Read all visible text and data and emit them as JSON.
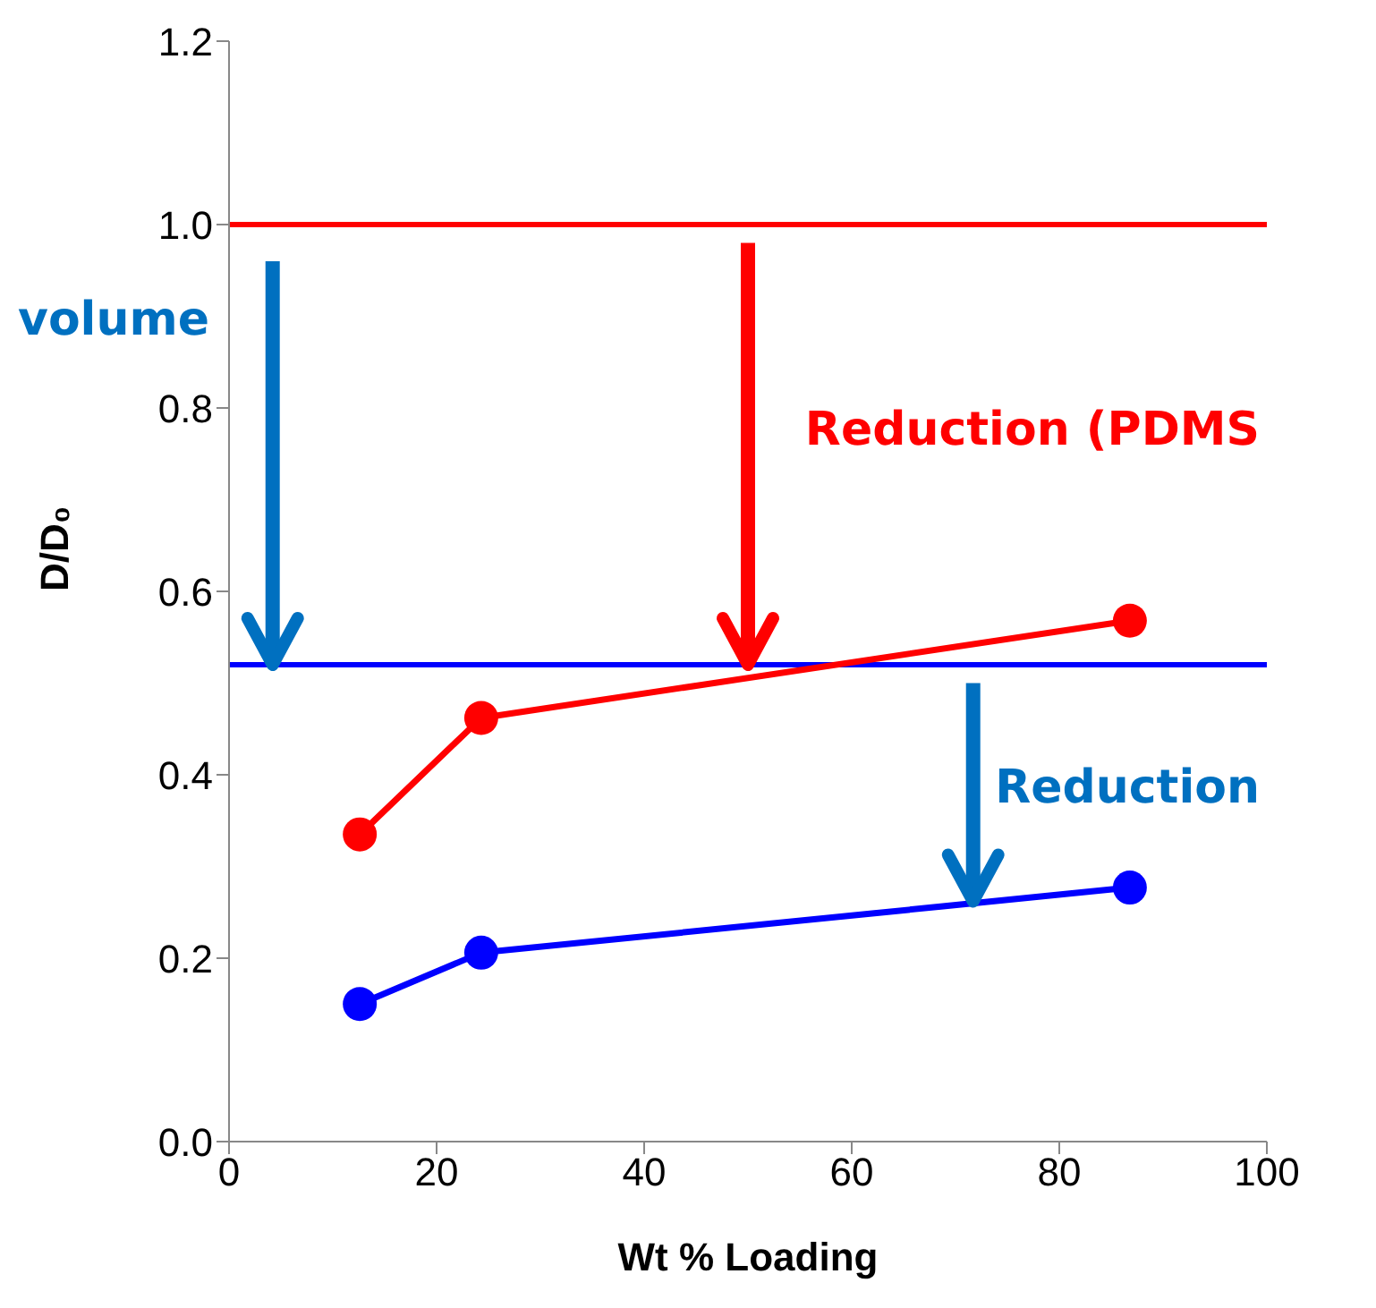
{
  "chart_data": {
    "type": "line",
    "xlabel": "Wt % Loading",
    "ylabel": "D/D₀",
    "x": [
      12.6,
      24.3,
      86.8
    ],
    "series": [
      {
        "color": "#ff0000",
        "values": [
          0.335,
          0.462,
          0.568
        ]
      },
      {
        "color": "#0000ff",
        "values": [
          0.15,
          0.206,
          0.277
        ]
      }
    ],
    "xlim": [
      0,
      100
    ],
    "xticks": [
      0,
      20,
      40,
      60,
      80,
      100
    ],
    "ylim": [
      0,
      1.2
    ],
    "yticks": [
      {
        "value": 0,
        "label": "0.0"
      },
      {
        "value": 0.2,
        "label": "0.2"
      },
      {
        "value": 0.4,
        "label": "0.4"
      },
      {
        "value": 0.6,
        "label": "0.6"
      },
      {
        "value": 0.8,
        "label": "0.8"
      },
      {
        "value": 1,
        "label": "1.0"
      },
      {
        "value": 1.2,
        "label": "1.2"
      }
    ],
    "marker": "circle",
    "ref_lines": [
      {
        "axis": "y",
        "value": 1,
        "color": "#ff0000"
      },
      {
        "axis": "y",
        "value": 0.52,
        "color": "#0000ff"
      }
    ],
    "annotations": [
      "volume",
      "Reduction (PDMS",
      "Reduction"
    ]
  }
}
